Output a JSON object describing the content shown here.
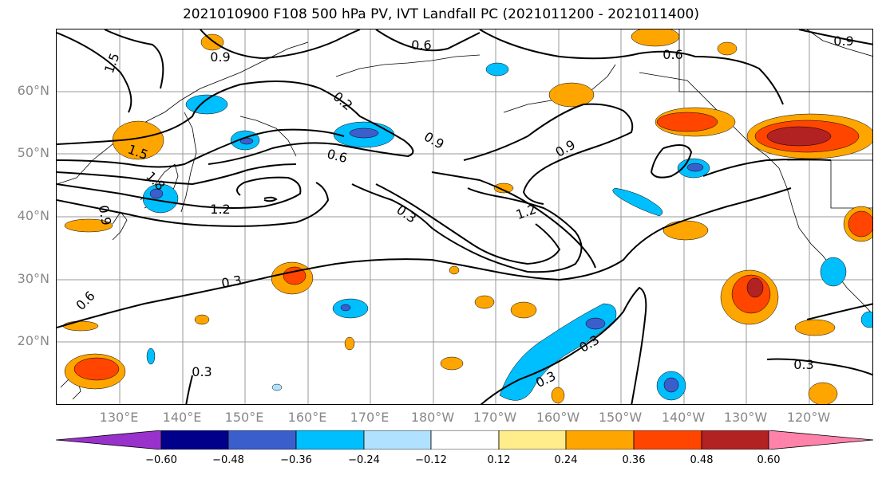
{
  "title": "2021010900 F108 500 hPa PV, IVT Landfall PC (2021011200 - 2021011400)",
  "lat_labels": [
    "60°N",
    "50°N",
    "40°N",
    "30°N",
    "20°N"
  ],
  "lon_labels": [
    "130°E",
    "140°E",
    "150°E",
    "160°E",
    "170°E",
    "180°W",
    "170°W",
    "160°W",
    "150°W",
    "140°W",
    "130°W",
    "120°W"
  ],
  "contour_labels": [
    "1.5",
    "0.9",
    "0.6",
    "0.6",
    "0.9",
    "1.5",
    "1.2",
    "0.9",
    "0.6",
    "0.3",
    "1.2",
    "0.9",
    "0.3",
    "0.6",
    "0.3",
    "0.3",
    "0.3",
    "1.8",
    "0.2",
    "0.9",
    "0.3"
  ],
  "colorbar": {
    "ticks": [
      "−0.60",
      "−0.48",
      "−0.36",
      "−0.24",
      "−0.12",
      "0.12",
      "0.24",
      "0.36",
      "0.48",
      "0.60"
    ],
    "colors": [
      "#9932cc",
      "#00008b",
      "#3a5fcd",
      "#00bfff",
      "#b0e2ff",
      "#ffffff",
      "#ffec8b",
      "#ffa500",
      "#ff4500",
      "#b22222",
      "#ff82ab"
    ]
  },
  "colors": {
    "orange": "#ffa500",
    "red": "#ff4500",
    "darkred": "#b22222",
    "yellow": "#ffec8b",
    "cyan": "#00bfff",
    "lightblue": "#b0e2ff",
    "blue": "#3a5fcd"
  }
}
